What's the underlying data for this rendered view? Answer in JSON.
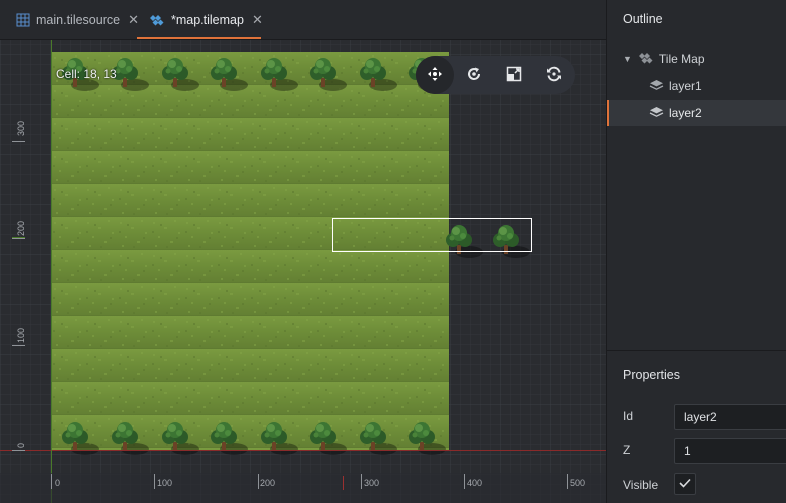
{
  "tabs": [
    {
      "label": "main.tilesource",
      "icon": "tile-grid-icon",
      "active": false
    },
    {
      "label": "*map.tilemap",
      "icon": "tilemap-icon",
      "active": true
    }
  ],
  "viewport": {
    "cell_readout": "Cell: 18, 13",
    "x_ticks": [
      "0",
      "100",
      "200",
      "300",
      "400",
      "500"
    ],
    "y_ticks": [
      "300",
      "200",
      "100",
      "0"
    ],
    "tools": [
      "move-tool-icon",
      "rotate-tool-icon",
      "scale-tool-icon",
      "refresh-tool-icon"
    ],
    "colors": {
      "grass": "#6f8d3b",
      "background": "#2a2c30",
      "selection": "#ffffff",
      "origin_x": "#8a2a2a",
      "origin_y": "#4a7a2a"
    }
  },
  "outline": {
    "title": "Outline",
    "root": {
      "label": "Tile Map",
      "icon": "tilemap-icon",
      "expanded": true
    },
    "children": [
      {
        "label": "layer1",
        "icon": "layer-icon",
        "selected": false
      },
      {
        "label": "layer2",
        "icon": "layer-icon",
        "selected": true
      }
    ]
  },
  "properties": {
    "title": "Properties",
    "id_label": "Id",
    "id_value": "layer2",
    "z_label": "Z",
    "z_value": "1",
    "visible_label": "Visible",
    "visible_checked": true
  },
  "accent": "#e0733a"
}
